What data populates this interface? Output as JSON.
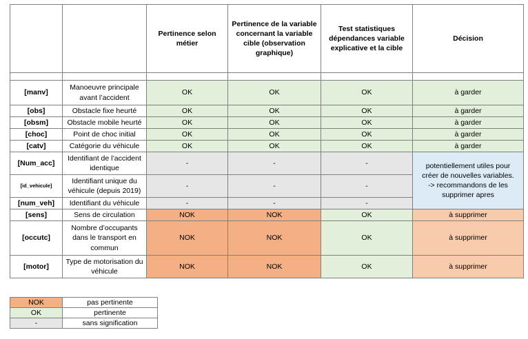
{
  "headers": {
    "metier": "Pertinence selon métier",
    "graph": "Pertinence de la variable concernant la variable cible (observation graphique)",
    "test": "Test statistiques dépendances variable explicative et la cible",
    "decision": "Décision"
  },
  "rows": [
    {
      "code": "[manv]",
      "desc": "Manoeuvre principale avant l’accident",
      "metier": "OK",
      "graph": "OK",
      "test": "OK",
      "decision": "à garder"
    },
    {
      "code": "[obs]",
      "desc": "Obstacle fixe heurté",
      "metier": "OK",
      "graph": "OK",
      "test": "OK",
      "decision": "à garder"
    },
    {
      "code": "[obsm]",
      "desc": "Obstacle mobile heurté",
      "metier": "OK",
      "graph": "OK",
      "test": "OK",
      "decision": "à garder"
    },
    {
      "code": "[choc]",
      "desc": "Point de choc initial",
      "metier": "OK",
      "graph": "OK",
      "test": "OK",
      "decision": "à garder"
    },
    {
      "code": "[catv]",
      "desc": "Catégorie du véhicule",
      "metier": "OK",
      "graph": "OK",
      "test": "OK",
      "decision": "à garder"
    },
    {
      "code": "[Num_acc]",
      "desc": "Identifiant de l’accident identique",
      "metier": "-",
      "graph": "-",
      "test": "-"
    },
    {
      "code": "[id_vehicule]",
      "desc": "Identifiant unique du véhicule (depuis 2019)",
      "metier": "-",
      "graph": "-",
      "test": "-"
    },
    {
      "code": "[num_veh]",
      "desc": "Identifiant du véhicule",
      "metier": "-",
      "graph": "-",
      "test": "-"
    },
    {
      "code": "[sens]",
      "desc": "Sens de circulation",
      "metier": "NOK",
      "graph": "NOK",
      "test": "OK",
      "decision": "à supprimer"
    },
    {
      "code": "[occutc]",
      "desc": "Nombre d’occupants dans le transport en commun",
      "metier": "NOK",
      "graph": "NOK",
      "test": "OK",
      "decision": "à supprimer"
    },
    {
      "code": "[motor]",
      "desc": "Type de motorisation du véhicule",
      "metier": "NOK",
      "graph": "NOK",
      "test": "OK",
      "decision": "à supprimer"
    }
  ],
  "merged_decision": {
    "line1": "potentiellement utiles pour",
    "line2": "créer de nouvelles variables.",
    "line3": "-> recommandons de les",
    "line4": "supprimer apres"
  },
  "legend": [
    {
      "key": "NOK",
      "label": "pas pertinente",
      "color": "#f4b084"
    },
    {
      "key": "OK",
      "label": "pertinente",
      "color": "#e2efda"
    },
    {
      "key": "-",
      "label": "sans signification",
      "color": "#e7e6e6"
    }
  ]
}
